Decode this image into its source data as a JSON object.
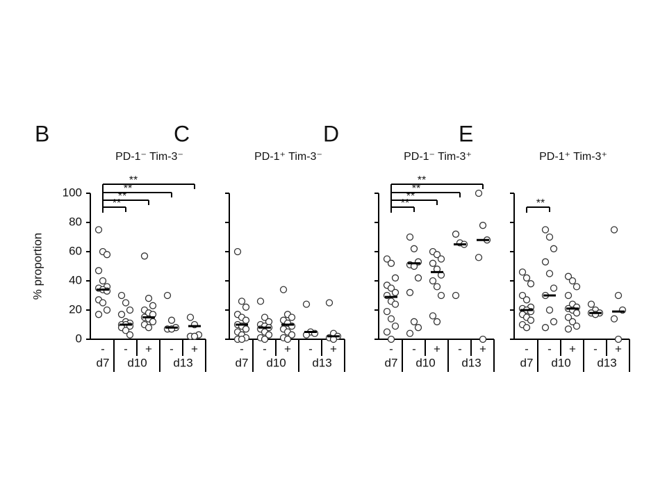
{
  "chart_data": [
    {
      "type": "dot",
      "panel": "B",
      "title": "PD-1⁻ Tim-3⁻",
      "y_label": "% proportion",
      "categories": [
        "-",
        "-",
        "+",
        "-",
        "+"
      ],
      "groups": [
        "d7",
        "d10",
        "d13"
      ],
      "ylim": [
        0,
        100
      ],
      "yticks": [
        0,
        20,
        40,
        60,
        80,
        100
      ],
      "show_tick_labels": true,
      "points": [
        [
          75,
          60,
          58,
          47,
          40,
          36,
          35,
          34,
          33,
          27,
          25,
          20,
          17
        ],
        [
          30,
          25,
          20,
          17,
          12,
          11,
          10,
          10,
          9,
          8,
          6,
          3
        ],
        [
          57,
          28,
          23,
          20,
          18,
          17,
          15,
          14,
          12,
          10,
          8
        ],
        [
          30,
          13,
          8,
          7,
          7
        ],
        [
          15,
          10,
          3,
          2,
          2
        ]
      ],
      "medians": [
        34,
        10,
        15,
        8,
        9
      ],
      "significance": [
        {
          "from": 0,
          "to": 1,
          "label": "**"
        },
        {
          "from": 0,
          "to": 2,
          "label": "**"
        },
        {
          "from": 0,
          "to": 3,
          "label": "**"
        },
        {
          "from": 0,
          "to": 4,
          "label": "**"
        }
      ]
    },
    {
      "type": "dot",
      "panel": "C",
      "title": "PD-1⁺ Tim-3⁻",
      "categories": [
        "-",
        "-",
        "+",
        "-",
        "+"
      ],
      "groups": [
        "d7",
        "d10",
        "d13"
      ],
      "ylim": [
        0,
        100
      ],
      "yticks": [
        0,
        20,
        40,
        60,
        80,
        100
      ],
      "show_tick_labels": false,
      "points": [
        [
          60,
          26,
          22,
          17,
          15,
          13,
          10,
          9,
          7,
          5,
          3,
          1,
          0,
          0
        ],
        [
          26,
          15,
          12,
          10,
          9,
          8,
          7,
          5,
          3,
          1,
          0
        ],
        [
          34,
          17,
          15,
          13,
          11,
          9,
          7,
          5,
          3,
          1,
          0
        ],
        [
          24,
          5,
          4,
          3
        ],
        [
          25,
          4,
          2,
          1,
          0
        ]
      ],
      "medians": [
        10,
        8,
        10,
        5,
        2
      ],
      "significance": []
    },
    {
      "type": "dot",
      "panel": "D",
      "title": "PD-1⁻ Tim-3⁺",
      "categories": [
        "-",
        "-",
        "+",
        "-",
        "+"
      ],
      "groups": [
        "d7",
        "d10",
        "d13"
      ],
      "ylim": [
        0,
        100
      ],
      "yticks": [
        0,
        20,
        40,
        60,
        80,
        100
      ],
      "show_tick_labels": false,
      "points": [
        [
          55,
          52,
          42,
          37,
          35,
          32,
          30,
          26,
          24,
          19,
          14,
          9,
          5,
          0
        ],
        [
          70,
          62,
          53,
          51,
          50,
          42,
          32,
          12,
          8,
          4
        ],
        [
          60,
          58,
          55,
          52,
          48,
          44,
          40,
          36,
          30,
          16,
          12
        ],
        [
          72,
          66,
          65,
          30
        ],
        [
          100,
          78,
          68,
          56,
          0
        ]
      ],
      "medians": [
        29,
        52,
        46,
        65,
        68
      ],
      "significance": [
        {
          "from": 0,
          "to": 1,
          "label": "**"
        },
        {
          "from": 0,
          "to": 2,
          "label": "**"
        },
        {
          "from": 0,
          "to": 3,
          "label": "**"
        },
        {
          "from": 0,
          "to": 4,
          "label": "**"
        }
      ]
    },
    {
      "type": "dot",
      "panel": "E",
      "title": "PD-1⁺ Tim-3⁺",
      "categories": [
        "-",
        "-",
        "+",
        "-",
        "+"
      ],
      "groups": [
        "d7",
        "d10",
        "d13"
      ],
      "ylim": [
        0,
        100
      ],
      "yticks": [
        0,
        20,
        40,
        60,
        80,
        100
      ],
      "show_tick_labels": false,
      "points": [
        [
          46,
          42,
          38,
          30,
          27,
          22,
          21,
          20,
          19,
          17,
          15,
          13,
          10,
          8
        ],
        [
          75,
          70,
          62,
          53,
          45,
          35,
          30,
          20,
          12,
          8
        ],
        [
          43,
          40,
          36,
          30,
          24,
          22,
          21,
          20,
          18,
          15,
          12,
          9,
          7
        ],
        [
          24,
          20,
          18,
          18,
          17
        ],
        [
          75,
          30,
          20,
          14,
          0
        ]
      ],
      "medians": [
        20,
        30,
        21,
        18,
        19
      ],
      "significance": [
        {
          "from": 0,
          "to": 1,
          "label": "**"
        }
      ]
    }
  ]
}
